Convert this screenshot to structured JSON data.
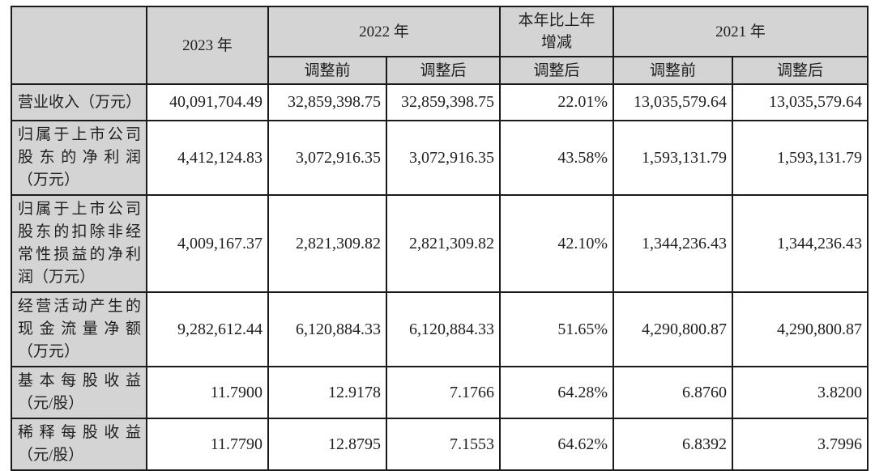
{
  "colors": {
    "header_bg": "#d4d4d4",
    "label_bg": "#d4d4d4",
    "cell_bg": "#ffffff",
    "border": "#1a1a1a",
    "text": "#1f1f1f"
  },
  "table": {
    "header": {
      "corner": "",
      "y2023": "2023 年",
      "y2022": "2022 年",
      "change": "本年比上年增减",
      "y2021": "2021 年",
      "sub_2022_pre": "调整前",
      "sub_2022_post": "调整后",
      "sub_change_post": "调整后",
      "sub_2021_pre": "调整前",
      "sub_2021_post": "调整后"
    },
    "rows": [
      {
        "label": "营业收入（万元）",
        "label_lines": [
          "营业收入（万元）"
        ],
        "y2023": "40,091,704.49",
        "y2022_pre": "32,859,398.75",
        "y2022_post": "32,859,398.75",
        "yoy": "22.01%",
        "y2021_pre": "13,035,579.64",
        "y2021_post": "13,035,579.64"
      },
      {
        "label": "归属于上市公司股东的净利润（万元）",
        "label_lines": [
          "归属于上市公司",
          "股东的净利润",
          "（万元）"
        ],
        "y2023": "4,412,124.83",
        "y2022_pre": "3,072,916.35",
        "y2022_post": "3,072,916.35",
        "yoy": "43.58%",
        "y2021_pre": "1,593,131.79",
        "y2021_post": "1,593,131.79"
      },
      {
        "label": "归属于上市公司股东的扣除非经常性损益的净利润（万元）",
        "label_lines": [
          "归属于上市公司",
          "股东的扣除非经",
          "常性损益的净利",
          "润（万元）"
        ],
        "y2023": "4,009,167.37",
        "y2022_pre": "2,821,309.82",
        "y2022_post": "2,821,309.82",
        "yoy": "42.10%",
        "y2021_pre": "1,344,236.43",
        "y2021_post": "1,344,236.43"
      },
      {
        "label": "经营活动产生的现金流量净额（万元）",
        "label_lines": [
          "经营活动产生的",
          "现金流量净额",
          "（万元）"
        ],
        "y2023": "9,282,612.44",
        "y2022_pre": "6,120,884.33",
        "y2022_post": "6,120,884.33",
        "yoy": "51.65%",
        "y2021_pre": "4,290,800.87",
        "y2021_post": "4,290,800.87"
      },
      {
        "label": "基本每股收益（元/股）",
        "label_lines": [
          "基本每股收益",
          "（元/股）"
        ],
        "y2023": "11.7900",
        "y2022_pre": "12.9178",
        "y2022_post": "7.1766",
        "yoy": "64.28%",
        "y2021_pre": "6.8760",
        "y2021_post": "3.8200"
      },
      {
        "label": "稀释每股收益（元/股）",
        "label_lines": [
          "稀释每股收益",
          "（元/股）"
        ],
        "y2023": "11.7790",
        "y2022_pre": "12.8795",
        "y2022_post": "7.1553",
        "yoy": "64.62%",
        "y2021_pre": "6.8392",
        "y2021_post": "3.7996"
      }
    ]
  }
}
